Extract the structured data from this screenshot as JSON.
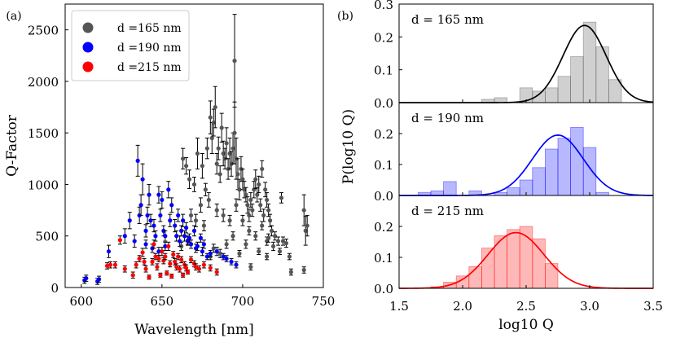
{
  "figure": {
    "panel_a_label": "(a)",
    "panel_b_label": "(b)"
  },
  "chart_data": [
    {
      "type": "scatter",
      "panel": "(a)",
      "xlabel": "Wavelength [nm]",
      "ylabel": "Q-Factor",
      "xlim": [
        590,
        750
      ],
      "ylim": [
        0,
        2750
      ],
      "xticks": [
        "600",
        "650",
        "700",
        "750"
      ],
      "yticks": [
        "0",
        "500",
        "1000",
        "1500",
        "2000",
        "2500"
      ],
      "grid": false,
      "legend": "top-left",
      "series": [
        {
          "name": "d =165 nm",
          "color": "#555555",
          "points": [
            [
              663,
              1250,
              100
            ],
            [
              665,
              1180,
              80
            ],
            [
              667,
              1050,
              90
            ],
            [
              670,
              1000,
              70
            ],
            [
              672,
              1300,
              150
            ],
            [
              675,
              1180,
              120
            ],
            [
              677,
              950,
              60
            ],
            [
              678,
              1350,
              100
            ],
            [
              680,
              1650,
              160
            ],
            [
              681,
              1450,
              150
            ],
            [
              682,
              1600,
              130
            ],
            [
              683,
              1750,
              200
            ],
            [
              684,
              1200,
              100
            ],
            [
              685,
              1350,
              110
            ],
            [
              686,
              1100,
              80
            ],
            [
              687,
              1550,
              140
            ],
            [
              688,
              1300,
              120
            ],
            [
              689,
              1250,
              100
            ],
            [
              690,
              1400,
              150
            ],
            [
              691,
              1150,
              100
            ],
            [
              692,
              1300,
              150
            ],
            [
              693,
              1200,
              120
            ],
            [
              694,
              1350,
              150
            ],
            [
              695,
              2200,
              450
            ],
            [
              695,
              1500,
              300
            ],
            [
              696,
              1250,
              200
            ],
            [
              697,
              1100,
              150
            ],
            [
              698,
              950,
              100
            ],
            [
              699,
              1150,
              120
            ],
            [
              700,
              1050,
              100
            ],
            [
              701,
              950,
              80
            ],
            [
              702,
              900,
              70
            ],
            [
              703,
              800,
              80
            ],
            [
              704,
              700,
              60
            ],
            [
              705,
              850,
              70
            ],
            [
              706,
              750,
              60
            ],
            [
              707,
              950,
              80
            ],
            [
              708,
              1050,
              90
            ],
            [
              709,
              900,
              70
            ],
            [
              710,
              1000,
              80
            ],
            [
              711,
              800,
              60
            ],
            [
              712,
              1150,
              80
            ],
            [
              713,
              700,
              60
            ],
            [
              714,
              950,
              70
            ],
            [
              715,
              850,
              70
            ],
            [
              716,
              750,
              60
            ],
            [
              717,
              650,
              60
            ],
            [
              718,
              550,
              50
            ],
            [
              668,
              700,
              60
            ],
            [
              671,
              650,
              60
            ],
            [
              674,
              800,
              70
            ],
            [
              676,
              600,
              50
            ],
            [
              679,
              850,
              70
            ],
            [
              684,
              750,
              60
            ],
            [
              688,
              700,
              60
            ],
            [
              692,
              650,
              50
            ],
            [
              696,
              800,
              60
            ],
            [
              700,
              650,
              50
            ],
            [
              704,
              550,
              40
            ],
            [
              708,
              500,
              40
            ],
            [
              712,
              600,
              40
            ],
            [
              715,
              450,
              40
            ],
            [
              720,
              500,
              40
            ],
            [
              722,
              450,
              40
            ],
            [
              724,
              870,
              50
            ],
            [
              725,
              450,
              40
            ],
            [
              727,
              430,
              40
            ],
            [
              729,
              300,
              30
            ],
            [
              730,
              150,
              30
            ],
            [
              738,
              750,
              150
            ],
            [
              739,
              550,
              140
            ],
            [
              740,
              600,
              100
            ],
            [
              738,
              170,
              30
            ],
            [
              705,
              200,
              30
            ],
            [
              690,
              420,
              40
            ],
            [
              686,
              330,
              40
            ],
            [
              682,
              380,
              40
            ],
            [
              698,
              330,
              30
            ],
            [
              710,
              350,
              30
            ],
            [
              715,
              300,
              30
            ],
            [
              680,
              300,
              30
            ],
            [
              694,
              500,
              40
            ],
            [
              702,
              420,
              40
            ],
            [
              716,
              480,
              40
            ],
            [
              719,
              400,
              40
            ],
            [
              723,
              350,
              30
            ],
            [
              662,
              400,
              40
            ],
            [
              666,
              460,
              40
            ]
          ]
        },
        {
          "name": "d =190 nm",
          "color": "#0000ff",
          "points": [
            [
              602,
              70,
              30
            ],
            [
              603,
              90,
              30
            ],
            [
              610,
              60,
              30
            ],
            [
              611,
              80,
              30
            ],
            [
              617,
              350,
              60
            ],
            [
              627,
              500,
              70
            ],
            [
              630,
              650,
              80
            ],
            [
              633,
              450,
              60
            ],
            [
              635,
              1230,
              150
            ],
            [
              636,
              700,
              80
            ],
            [
              637,
              800,
              100
            ],
            [
              638,
              1050,
              150
            ],
            [
              640,
              550,
              60
            ],
            [
              641,
              700,
              80
            ],
            [
              642,
              900,
              100
            ],
            [
              643,
              650,
              60
            ],
            [
              645,
              600,
              60
            ],
            [
              646,
              500,
              50
            ],
            [
              648,
              900,
              80
            ],
            [
              649,
              700,
              60
            ],
            [
              650,
              850,
              80
            ],
            [
              651,
              550,
              50
            ],
            [
              652,
              500,
              50
            ],
            [
              654,
              950,
              80
            ],
            [
              655,
              650,
              60
            ],
            [
              656,
              800,
              70
            ],
            [
              658,
              600,
              60
            ],
            [
              659,
              500,
              50
            ],
            [
              660,
              700,
              60
            ],
            [
              661,
              450,
              50
            ],
            [
              662,
              550,
              50
            ],
            [
              663,
              650,
              60
            ],
            [
              664,
              500,
              50
            ],
            [
              665,
              580,
              50
            ],
            [
              666,
              450,
              40
            ],
            [
              667,
              480,
              40
            ],
            [
              668,
              420,
              40
            ],
            [
              670,
              550,
              50
            ],
            [
              671,
              380,
              40
            ],
            [
              672,
              400,
              40
            ],
            [
              674,
              480,
              40
            ],
            [
              675,
              350,
              40
            ],
            [
              676,
              420,
              40
            ],
            [
              678,
              300,
              30
            ],
            [
              680,
              330,
              30
            ],
            [
              684,
              350,
              40
            ],
            [
              688,
              300,
              30
            ],
            [
              690,
              280,
              30
            ],
            [
              693,
              250,
              30
            ],
            [
              696,
              220,
              30
            ],
            [
              640,
              420,
              40
            ],
            [
              644,
              380,
              40
            ],
            [
              648,
              350,
              40
            ],
            [
              652,
              400,
              40
            ]
          ]
        },
        {
          "name": "d =215 nm",
          "color": "#ff0000",
          "points": [
            [
              616,
              210,
              30
            ],
            [
              618,
              220,
              30
            ],
            [
              621,
              220,
              30
            ],
            [
              624,
              460,
              40
            ],
            [
              627,
              180,
              30
            ],
            [
              632,
              120,
              30
            ],
            [
              634,
              220,
              30
            ],
            [
              636,
              280,
              30
            ],
            [
              638,
              340,
              40
            ],
            [
              640,
              180,
              30
            ],
            [
              642,
              100,
              20
            ],
            [
              644,
              250,
              30
            ],
            [
              645,
              420,
              40
            ],
            [
              647,
              200,
              30
            ],
            [
              648,
              280,
              30
            ],
            [
              650,
              350,
              40
            ],
            [
              651,
              260,
              30
            ],
            [
              652,
              300,
              30
            ],
            [
              654,
              400,
              40
            ],
            [
              655,
              230,
              30
            ],
            [
              657,
              320,
              30
            ],
            [
              658,
              250,
              30
            ],
            [
              659,
              200,
              30
            ],
            [
              660,
              300,
              30
            ],
            [
              661,
              180,
              30
            ],
            [
              662,
              270,
              30
            ],
            [
              664,
              220,
              30
            ],
            [
              665,
              190,
              30
            ],
            [
              666,
              150,
              20
            ],
            [
              668,
              270,
              30
            ],
            [
              670,
              230,
              30
            ],
            [
              671,
              200,
              30
            ],
            [
              673,
              180,
              30
            ],
            [
              676,
              220,
              30
            ],
            [
              680,
              190,
              30
            ],
            [
              684,
              150,
              30
            ],
            [
              649,
              120,
              20
            ],
            [
              653,
              140,
              20
            ],
            [
              656,
              110,
              20
            ],
            [
              663,
              120,
              20
            ],
            [
              646,
              300,
              30
            ],
            [
              639,
              250,
              30
            ]
          ]
        }
      ]
    },
    {
      "type": "histogram",
      "panel": "(b) top",
      "label": "d = 165 nm",
      "color": "#555555",
      "xlim": [
        1.5,
        3.5
      ],
      "ylim": [
        0,
        0.3
      ],
      "yticks": [
        "0.0",
        "0.1",
        "0.2",
        "0.3"
      ],
      "bin_edges": [
        1.65,
        1.75,
        1.85,
        1.95,
        2.05,
        2.15,
        2.25,
        2.35,
        2.45,
        2.55,
        2.65,
        2.75,
        2.85,
        2.95,
        3.05,
        3.15,
        3.25
      ],
      "values": [
        0,
        0,
        0,
        0,
        0,
        0.01,
        0.015,
        0,
        0.045,
        0.035,
        0.045,
        0.08,
        0.14,
        0.245,
        0.17,
        0.07,
        0.015
      ],
      "fit": {
        "mean": 2.96,
        "sd": 0.17,
        "peak": 0.235
      }
    },
    {
      "type": "histogram",
      "panel": "(b) middle",
      "label": "d = 190 nm",
      "color": "#0000ff",
      "ylabel": "P(log10 Q)",
      "xlim": [
        1.5,
        3.5
      ],
      "ylim": [
        0,
        0.3
      ],
      "yticks": [
        "0.0",
        "0.1",
        "0.2"
      ],
      "bin_edges": [
        1.65,
        1.75,
        1.85,
        1.95,
        2.05,
        2.15,
        2.25,
        2.35,
        2.45,
        2.55,
        2.65,
        2.75,
        2.85,
        2.95,
        3.05,
        3.15,
        3.25
      ],
      "values": [
        0.01,
        0.015,
        0.045,
        0,
        0.015,
        0,
        0.01,
        0.025,
        0.05,
        0.09,
        0.15,
        0.185,
        0.22,
        0.155,
        0.01,
        0,
        0
      ],
      "fit": {
        "mean": 2.75,
        "sd": 0.2,
        "peak": 0.195
      }
    },
    {
      "type": "histogram",
      "panel": "(b) bottom",
      "label": "d = 215 nm",
      "color": "#ff0000",
      "xlabel": "log10 Q",
      "xlim": [
        1.5,
        3.5
      ],
      "ylim": [
        0,
        0.3
      ],
      "xticks": [
        "1.5",
        "2.0",
        "2.5",
        "3.0",
        "3.5"
      ],
      "yticks": [
        "0.0",
        "0.1",
        "0.2"
      ],
      "bin_edges": [
        1.75,
        1.85,
        1.95,
        2.05,
        2.15,
        2.25,
        2.35,
        2.45,
        2.55,
        2.65,
        2.75
      ],
      "values": [
        0.005,
        0.02,
        0.04,
        0.07,
        0.13,
        0.17,
        0.19,
        0.2,
        0.16,
        0.08,
        0.01
      ],
      "fit": {
        "mean": 2.42,
        "sd": 0.22,
        "peak": 0.18
      }
    }
  ]
}
